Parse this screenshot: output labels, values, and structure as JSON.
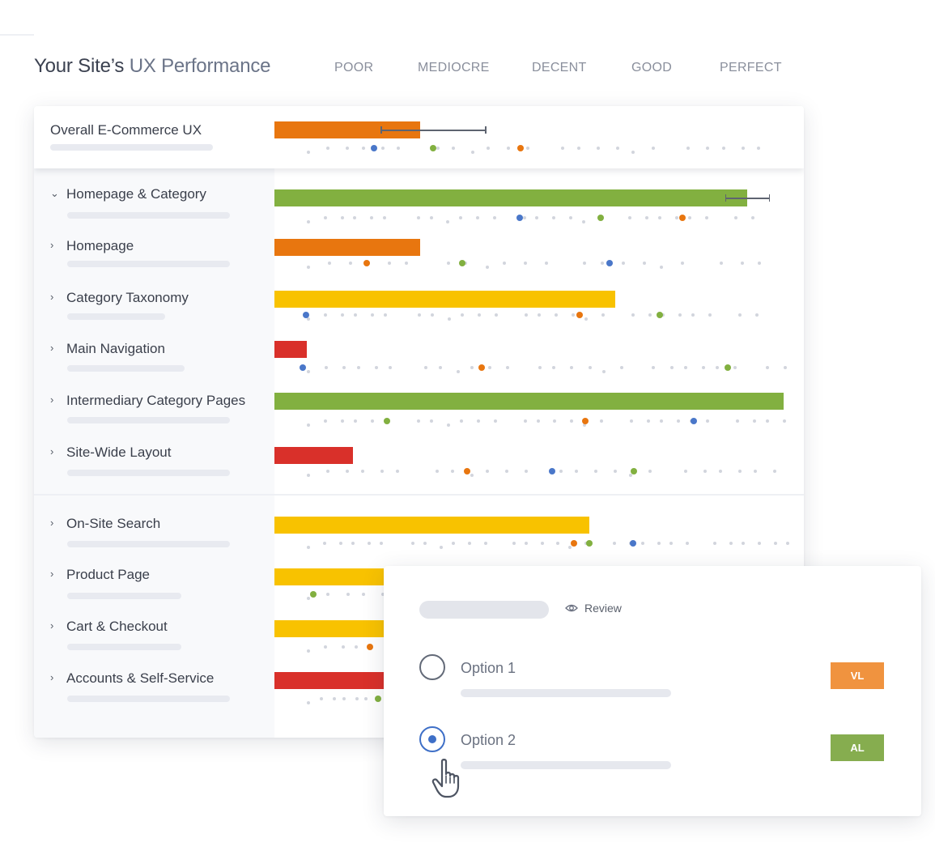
{
  "header": {
    "title_prefix": "Your Site’s ",
    "title_accent": "UX Performance",
    "scale": [
      "POOR",
      "MEDIOCRE",
      "DECENT",
      "GOOD",
      "PERFECT"
    ]
  },
  "colors": {
    "orange": "#e8760f",
    "green": "#82b040",
    "yellow": "#f8c200",
    "red": "#d9302a",
    "blue": "#4a77c9",
    "badge_vl": "#f0933f",
    "badge_al": "#86ad4f"
  },
  "rows": [
    {
      "label": "Overall E-Commerce UX",
      "chevron": "",
      "score_pct": 28.6,
      "color": "orange",
      "has_error_bar": true,
      "error_low_pct": 20.9,
      "error_high_pct": 41.4
    },
    {
      "label": "Homepage & Category",
      "chevron": "⌄",
      "score_pct": 92.8,
      "color": "green",
      "has_error_bar": true,
      "error_low_pct": 88.5,
      "error_high_pct": 97.1
    },
    {
      "label": "Homepage",
      "chevron": "›",
      "score_pct": 28.6,
      "color": "orange"
    },
    {
      "label": "Category Taxonomy",
      "chevron": "›",
      "score_pct": 66.9,
      "color": "yellow"
    },
    {
      "label": "Main Navigation",
      "chevron": "›",
      "score_pct": 6.4,
      "color": "red"
    },
    {
      "label": "Intermediary Category Pages",
      "chevron": "›",
      "score_pct": 100,
      "color": "green"
    },
    {
      "label": "Site-Wide Layout",
      "chevron": "›",
      "score_pct": 15.5,
      "color": "red"
    },
    {
      "label": "On-Site Search",
      "chevron": "›",
      "score_pct": 61.8,
      "color": "yellow"
    },
    {
      "label": "Product Page",
      "chevron": "›",
      "score_pct": 61.8,
      "color": "yellow"
    },
    {
      "label": "Cart & Checkout",
      "chevron": "›",
      "score_pct": 61.8,
      "color": "yellow"
    },
    {
      "label": "Accounts & Self-Service",
      "chevron": "›",
      "score_pct": 61.8,
      "color": "red"
    }
  ],
  "popup": {
    "review_label": "Review",
    "options": [
      {
        "label": "Option 1",
        "selected": false,
        "badge": "VL",
        "badge_color": "badge_vl"
      },
      {
        "label": "Option 2",
        "selected": true,
        "badge": "AL",
        "badge_color": "badge_al"
      }
    ]
  },
  "icons": {
    "review": "eye-icon",
    "cursor": "hand-pointer-icon",
    "expanded": "chevron-down-icon",
    "collapsed": "chevron-right-icon"
  }
}
